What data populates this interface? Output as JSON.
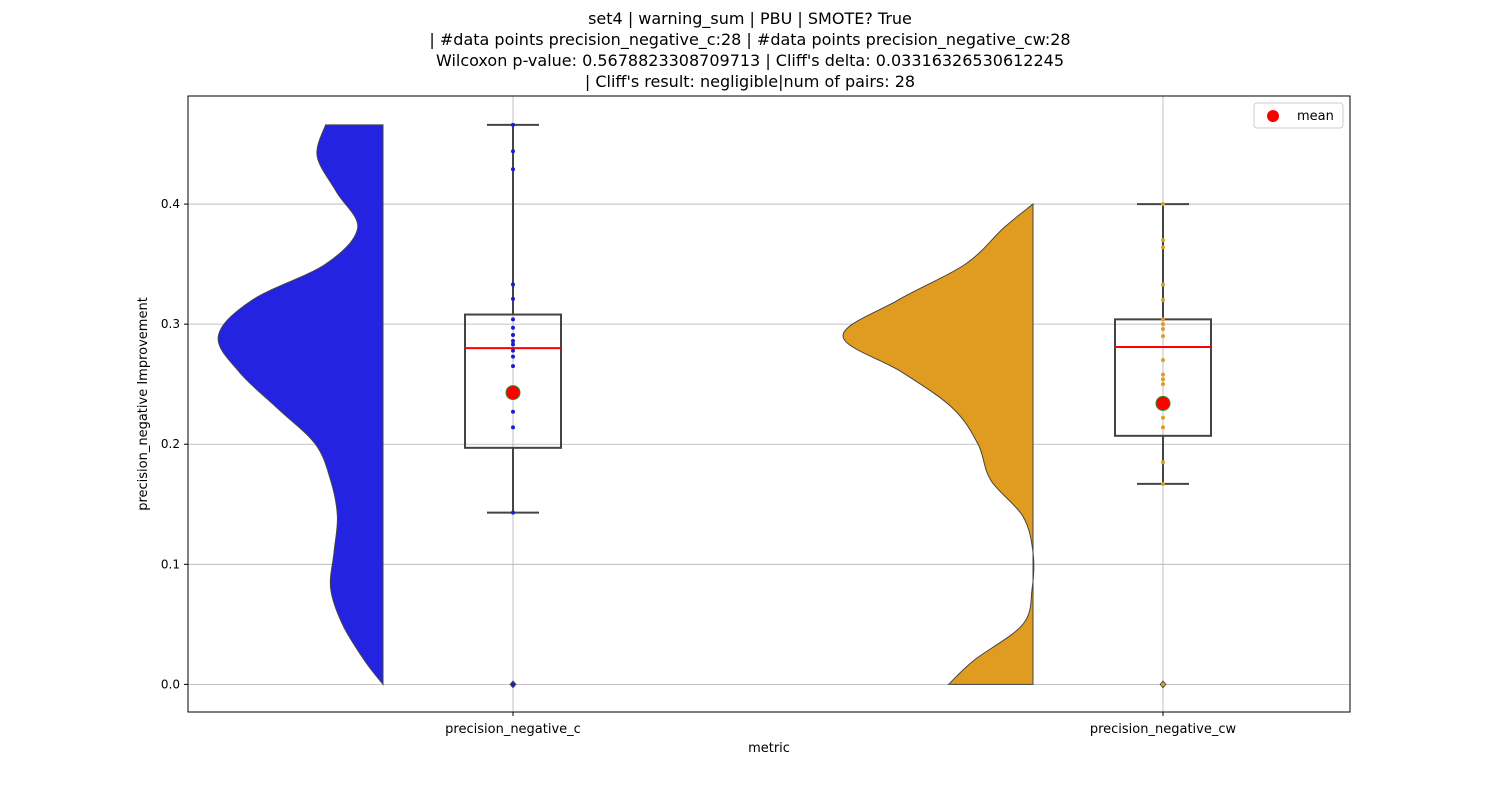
{
  "chart_data": {
    "type": "violin-box",
    "title_lines": [
      "set4 | warning_sum | PBU | SMOTE? True",
      "| #data points precision_negative_c:28 | #data points precision_negative_cw:28",
      "Wilcoxon p-value: 0.5678823308709713 | Cliff's delta: 0.03316326530612245",
      "| Cliff's result: negligible|num of pairs: 28"
    ],
    "xlabel": "metric",
    "ylabel": "precision_negative Improvement",
    "ylim": [
      -0.023,
      0.49
    ],
    "yticks": [
      0.0,
      0.1,
      0.2,
      0.3,
      0.4
    ],
    "ytick_labels": [
      "0.0",
      "0.1",
      "0.2",
      "0.3",
      "0.4"
    ],
    "grid": true,
    "legend": {
      "position": "top-right",
      "entries": [
        {
          "label": "mean",
          "color": "#ff0000"
        }
      ]
    },
    "categories": [
      "precision_negative_c",
      "precision_negative_cw"
    ],
    "series": [
      {
        "category": "precision_negative_c",
        "violin_color": "#2323e1",
        "point_color": "#1b1bd6",
        "box": {
          "whisker_low": 0.143,
          "q1": 0.197,
          "median": 0.28,
          "q3": 0.308,
          "whisker_high": 0.466
        },
        "mean": 0.243,
        "outliers": [
          0.0
        ],
        "points": [
          0.0,
          0.143,
          0.214,
          0.227,
          0.265,
          0.273,
          0.278,
          0.283,
          0.286,
          0.291,
          0.297,
          0.304,
          0.321,
          0.333,
          0.429,
          0.444,
          0.466
        ],
        "density": [
          [
            0.0,
            0.0
          ],
          [
            0.02,
            0.22
          ],
          [
            0.05,
            0.48
          ],
          [
            0.08,
            0.62
          ],
          [
            0.11,
            0.58
          ],
          [
            0.14,
            0.54
          ],
          [
            0.17,
            0.62
          ],
          [
            0.2,
            0.8
          ],
          [
            0.23,
            1.25
          ],
          [
            0.26,
            1.7
          ],
          [
            0.29,
            1.95
          ],
          [
            0.32,
            1.55
          ],
          [
            0.35,
            0.68
          ],
          [
            0.38,
            0.3
          ],
          [
            0.41,
            0.55
          ],
          [
            0.44,
            0.78
          ],
          [
            0.466,
            0.68
          ]
        ]
      },
      {
        "category": "precision_negative_cw",
        "violin_color": "#e09c21",
        "point_color": "#e09c21",
        "box": {
          "whisker_low": 0.167,
          "q1": 0.207,
          "median": 0.281,
          "q3": 0.304,
          "whisker_high": 0.4
        },
        "mean": 0.234,
        "outliers": [
          0.0
        ],
        "points": [
          0.0,
          0.167,
          0.185,
          0.214,
          0.222,
          0.25,
          0.254,
          0.258,
          0.27,
          0.29,
          0.296,
          0.3,
          0.304,
          0.32,
          0.333,
          0.364,
          0.37,
          0.4
        ],
        "density": [
          [
            0.0,
            1.0
          ],
          [
            0.02,
            0.7
          ],
          [
            0.05,
            0.12
          ],
          [
            0.08,
            0.01
          ],
          [
            0.11,
            0.0
          ],
          [
            0.14,
            0.12
          ],
          [
            0.17,
            0.5
          ],
          [
            0.2,
            0.65
          ],
          [
            0.23,
            0.95
          ],
          [
            0.26,
            1.55
          ],
          [
            0.29,
            2.25
          ],
          [
            0.32,
            1.6
          ],
          [
            0.35,
            0.8
          ],
          [
            0.38,
            0.35
          ],
          [
            0.4,
            0.0
          ]
        ]
      }
    ]
  }
}
